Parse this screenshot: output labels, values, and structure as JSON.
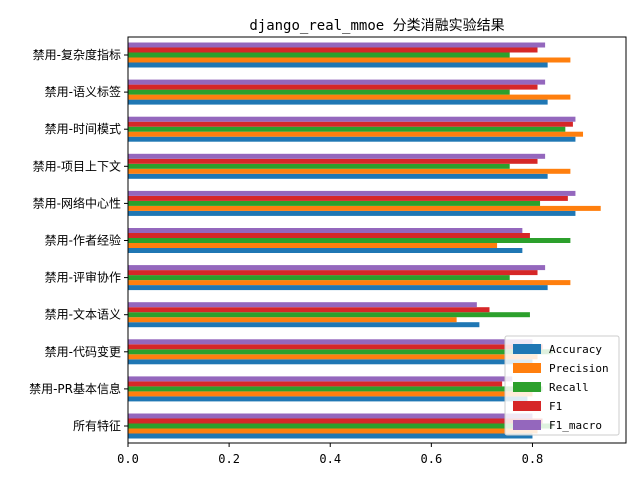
{
  "chart_data": {
    "type": "bar",
    "orientation": "horizontal",
    "title": "django_real_mmoe 分类消融实验结果",
    "xlabel": "",
    "ylabel": "",
    "xlim": [
      0.0,
      0.985
    ],
    "xticks": [
      0.0,
      0.2,
      0.4,
      0.6,
      0.8
    ],
    "xtick_labels": [
      "0.0",
      "0.2",
      "0.4",
      "0.6",
      "0.8"
    ],
    "grid": false,
    "legend_position": "lower right",
    "categories": [
      "所有特征",
      "禁用-PR基本信息",
      "禁用-代码变更",
      "禁用-文本语义",
      "禁用-评审协作",
      "禁用-作者经验",
      "禁用-网络中心性",
      "禁用-项目上下文",
      "禁用-时间模式",
      "禁用-语义标签",
      "禁用-复杂度指标"
    ],
    "series": [
      {
        "name": "Accuracy",
        "color": "#1f77b4",
        "values": [
          0.8,
          0.79,
          0.8,
          0.695,
          0.83,
          0.78,
          0.885,
          0.83,
          0.885,
          0.83,
          0.83
        ]
      },
      {
        "name": "Precision",
        "color": "#ff7f0e",
        "values": [
          0.81,
          0.8,
          0.81,
          0.65,
          0.875,
          0.73,
          0.935,
          0.875,
          0.9,
          0.875,
          0.875
        ]
      },
      {
        "name": "Recall",
        "color": "#2ca02c",
        "values": [
          0.84,
          0.82,
          0.84,
          0.795,
          0.755,
          0.875,
          0.815,
          0.755,
          0.865,
          0.755,
          0.755
        ]
      },
      {
        "name": "F1",
        "color": "#d62728",
        "values": [
          0.82,
          0.74,
          0.82,
          0.715,
          0.81,
          0.795,
          0.87,
          0.81,
          0.88,
          0.81,
          0.81
        ]
      },
      {
        "name": "F1_macro",
        "color": "#9467bd",
        "values": [
          0.8,
          0.76,
          0.8,
          0.69,
          0.825,
          0.78,
          0.885,
          0.825,
          0.885,
          0.825,
          0.825
        ]
      }
    ]
  }
}
